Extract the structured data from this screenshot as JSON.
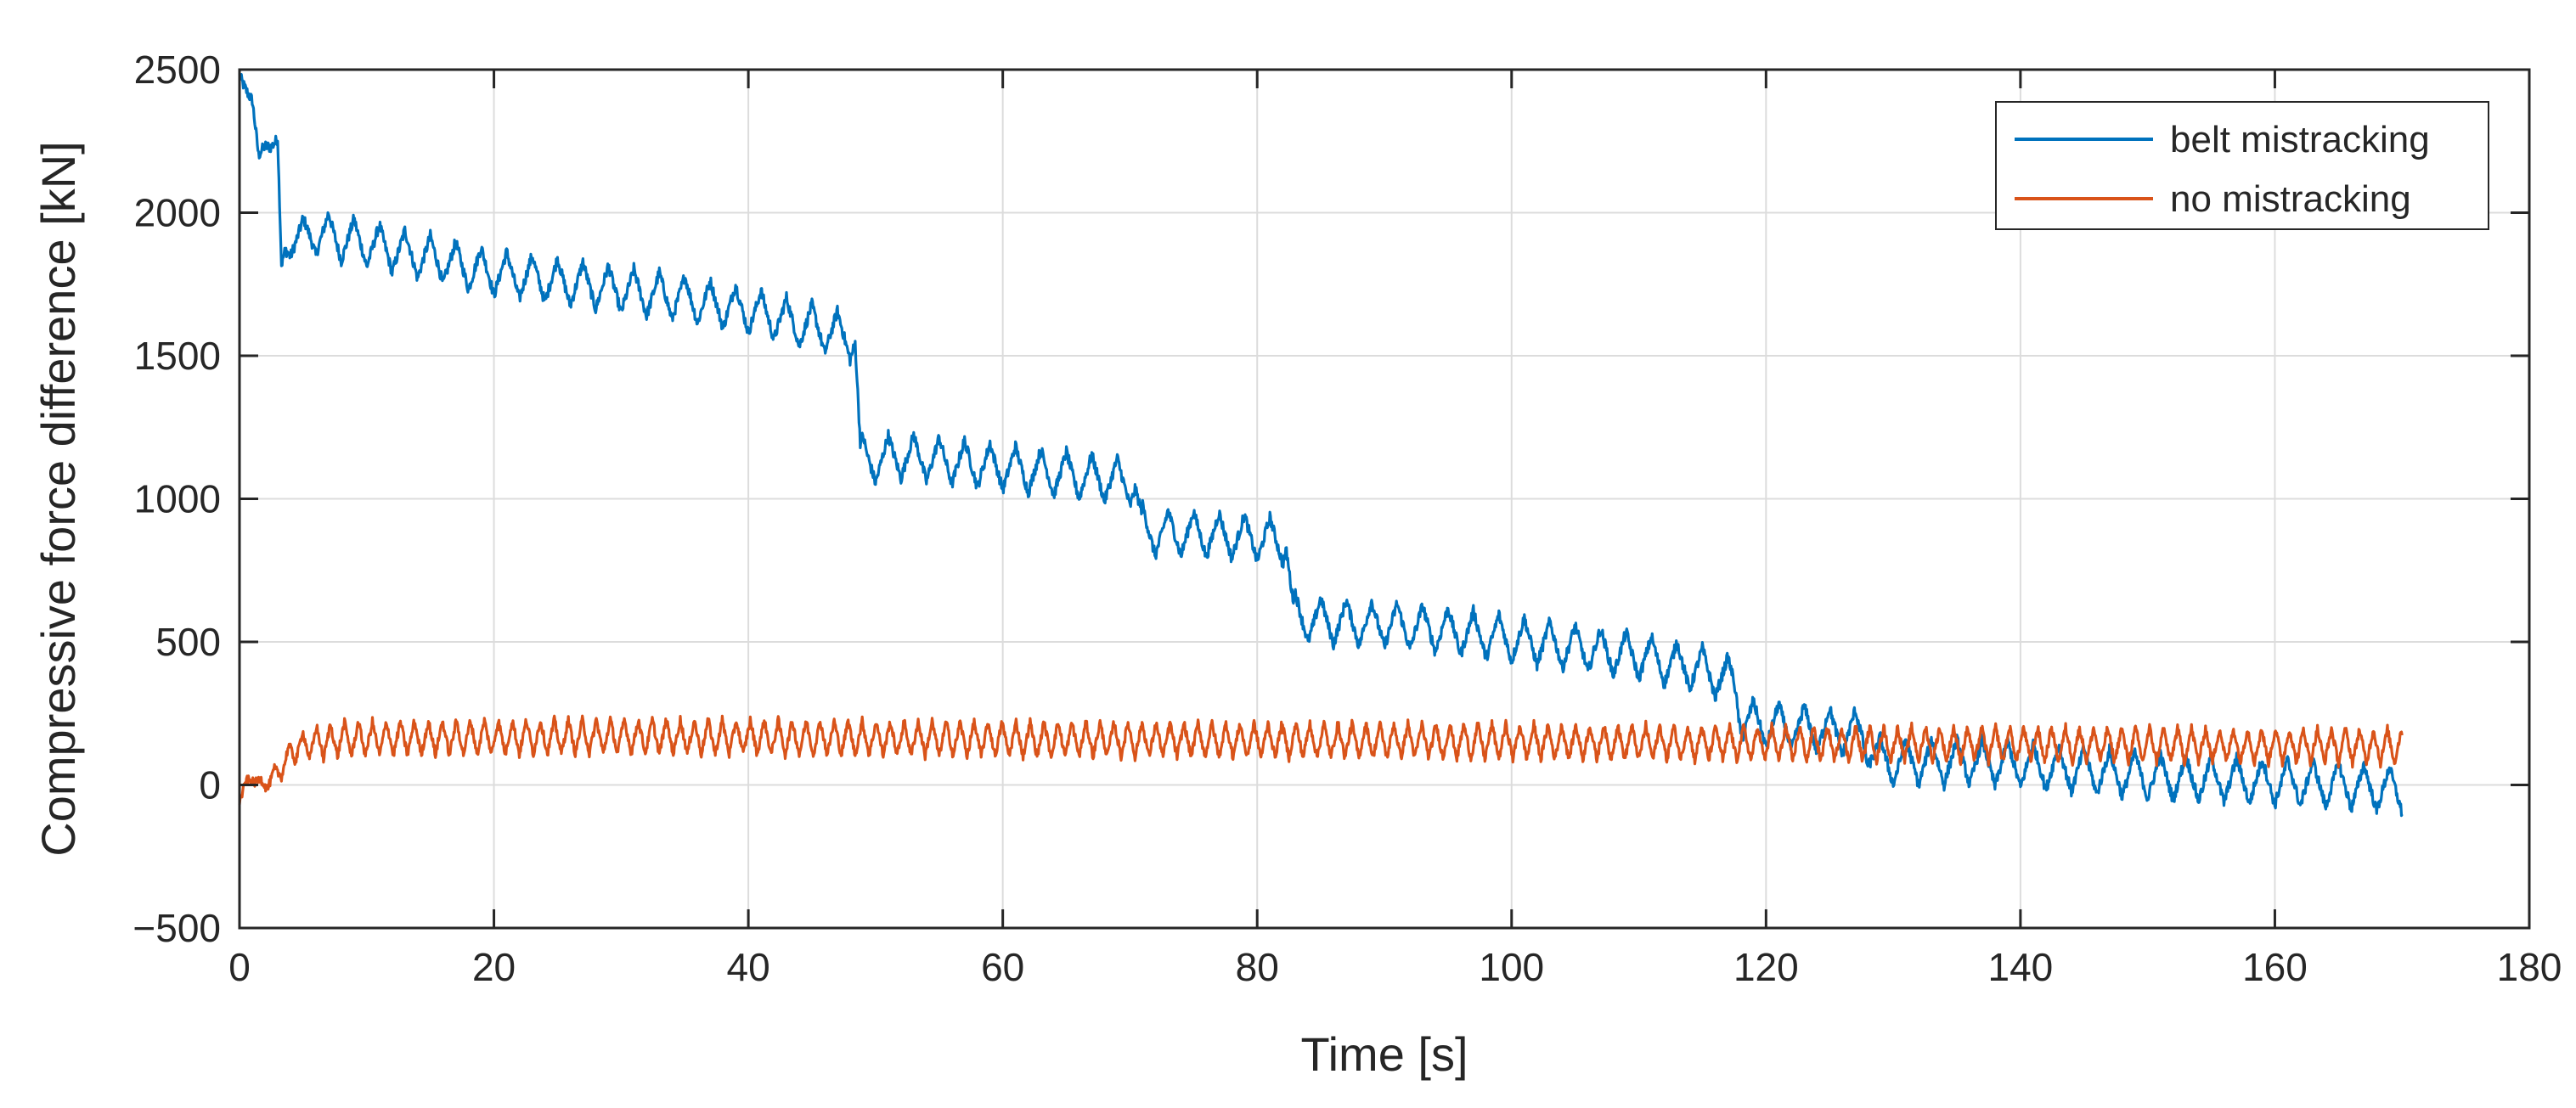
{
  "chart_data": {
    "type": "line",
    "title": "",
    "xlabel": "Time [s]",
    "ylabel": "Compressive force difference [kN]",
    "xlim": [
      0,
      180
    ],
    "ylim": [
      -500,
      2500
    ],
    "xticks": [
      0,
      20,
      40,
      60,
      80,
      100,
      120,
      140,
      160,
      180
    ],
    "yticks": [
      -500,
      0,
      500,
      1000,
      1500,
      2000,
      2500
    ],
    "xtick_labels": [
      "0",
      "20",
      "40",
      "60",
      "80",
      "100",
      "120",
      "140",
      "160",
      "180"
    ],
    "ytick_labels": [
      "−500",
      "0",
      "500",
      "1000",
      "1500",
      "2000",
      "2500"
    ],
    "grid": true,
    "legend_position": "top-right",
    "series": [
      {
        "name": "belt mistracking",
        "color": "#0072BD",
        "oscillation_period_s": 2,
        "oscillation_amplitude": 80,
        "x": [
          0,
          0.5,
          1,
          1.5,
          2,
          2.5,
          3,
          3.3,
          3.6,
          4,
          6,
          10,
          15,
          20,
          25,
          30,
          35,
          40,
          45,
          48.4,
          48.8,
          49.3,
          52,
          56,
          60,
          64,
          68,
          70.4,
          70.9,
          71.5,
          74,
          78,
          82.3,
          82.8,
          83.5,
          86,
          90,
          95,
          100,
          105,
          110,
          115,
          117.5,
          118.2,
          120,
          125,
          127.5,
          128.6,
          129.3,
          132,
          136,
          140,
          145,
          150,
          155,
          160,
          165,
          170
        ],
        "y": [
          2480,
          2430,
          2380,
          2200,
          2260,
          2230,
          2220,
          1800,
          1880,
          1900,
          1930,
          1890,
          1840,
          1790,
          1760,
          1730,
          1700,
          1660,
          1600,
          1560,
          1150,
          1130,
          1150,
          1130,
          1110,
          1090,
          1070,
          1050,
          900,
          880,
          880,
          870,
          850,
          600,
          580,
          570,
          560,
          540,
          510,
          480,
          450,
          400,
          360,
          220,
          210,
          190,
          180,
          100,
          80,
          80,
          80,
          70,
          50,
          30,
          20,
          10,
          0,
          -20
        ]
      },
      {
        "name": "no mistracking",
        "color": "#D95319",
        "oscillation_period_s": 1.1,
        "oscillation_amplitude": 60,
        "x": [
          0,
          0.5,
          1,
          2,
          3,
          4,
          5,
          8,
          15,
          30,
          60,
          90,
          120,
          150,
          170
        ],
        "y": [
          -60,
          10,
          20,
          0,
          40,
          110,
          140,
          160,
          165,
          170,
          160,
          155,
          145,
          140,
          135
        ]
      }
    ]
  }
}
